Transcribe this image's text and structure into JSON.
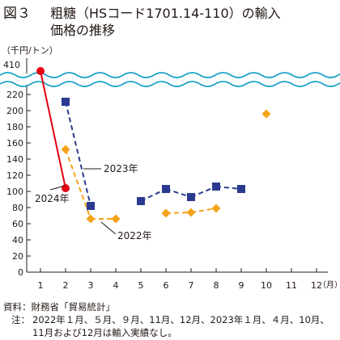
{
  "figure": {
    "label": "図３",
    "title_line1": "粗糖（HSコード1701.14-110）の輸入",
    "title_line2": "価格の推移"
  },
  "chart_data": {
    "type": "line",
    "unit_label": "（千円/トン）",
    "x_unit_label": "（月）",
    "categories": [
      "1",
      "2",
      "3",
      "4",
      "5",
      "6",
      "7",
      "8",
      "9",
      "10",
      "11",
      "12"
    ],
    "y_ticks": [
      "0",
      "20",
      "40",
      "60",
      "80",
      "100",
      "120",
      "140",
      "160",
      "180",
      "200",
      "220"
    ],
    "y_break_tick": "410",
    "ylim": [
      0,
      220
    ],
    "axis_break": "wavy break between 220 and 410",
    "grid": false,
    "series": [
      {
        "name": "2022年",
        "color": "#f5a31a",
        "marker": "diamond",
        "line": "dashed",
        "values": [
          null,
          152,
          66,
          66,
          null,
          73,
          74,
          79,
          null,
          196,
          null,
          null
        ]
      },
      {
        "name": "2023年",
        "color": "#2b3a8f",
        "marker": "square",
        "line": "dashed",
        "values": [
          null,
          211,
          82,
          null,
          88,
          103,
          93,
          106,
          103,
          null,
          null,
          null
        ]
      },
      {
        "name": "2024年",
        "color": "#e60012",
        "marker": "circle",
        "line": "solid",
        "values": [
          410,
          104,
          null,
          null,
          null,
          null,
          null,
          null,
          null,
          null,
          null,
          null
        ]
      }
    ]
  },
  "footer": {
    "source": "資料：財務省「貿易統計」",
    "note_label": "注：",
    "note": "2022年１月、５月、９月、11月、12月、2023年１月、４月、10月、11月および12月は輸入実績なし。"
  }
}
